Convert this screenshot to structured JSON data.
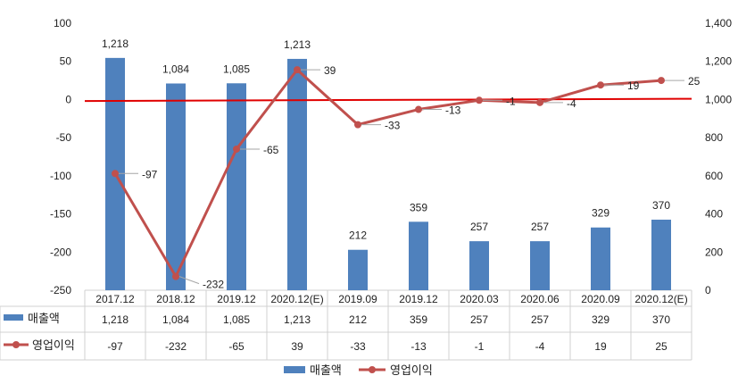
{
  "chart_data": {
    "type": "bar",
    "categories": [
      "2017.12",
      "2018.12",
      "2019.12",
      "2020.12(E)",
      "2019.09",
      "2019.12",
      "2020.03",
      "2020.06",
      "2020.09",
      "2020.12(E)"
    ],
    "series": [
      {
        "name": "매출액",
        "type": "bar",
        "axis": "right",
        "color": "#4f81bd",
        "values": [
          1218,
          1084,
          1085,
          1213,
          212,
          359,
          257,
          257,
          329,
          370
        ],
        "labels": [
          "1,218",
          "1,084",
          "1,085",
          "1,213",
          "212",
          "359",
          "257",
          "257",
          "329",
          "370"
        ]
      },
      {
        "name": "영업이익",
        "type": "line",
        "axis": "left",
        "color": "#c0504d",
        "values": [
          -97,
          -232,
          -65,
          39,
          -33,
          -13,
          -1,
          -4,
          19,
          25
        ],
        "labels": [
          "-97",
          "-232",
          "-65",
          "39",
          "-33",
          "-13",
          "-1",
          "-4",
          "19",
          "25"
        ]
      }
    ],
    "left_axis": {
      "min": -250,
      "max": 100,
      "ticks": [
        100,
        50,
        0,
        -50,
        -100,
        -150,
        -200,
        -250
      ],
      "tick_labels": [
        "100",
        "50",
        "0",
        "-50",
        "-100",
        "-150",
        "-200",
        "-250"
      ]
    },
    "right_axis": {
      "min": 0,
      "max": 1400,
      "ticks": [
        1400,
        1200,
        1000,
        800,
        600,
        400,
        200,
        0
      ],
      "tick_labels": [
        "1,400",
        "1,200",
        "1,000",
        "800",
        "600",
        "400",
        "200",
        "0"
      ]
    },
    "trend_line": {
      "color": "#e00000",
      "from": -2,
      "to": 1
    },
    "legend": {
      "position": "bottom",
      "entries": [
        "매출액",
        "영업이익"
      ]
    },
    "data_table": true,
    "grid": false
  }
}
